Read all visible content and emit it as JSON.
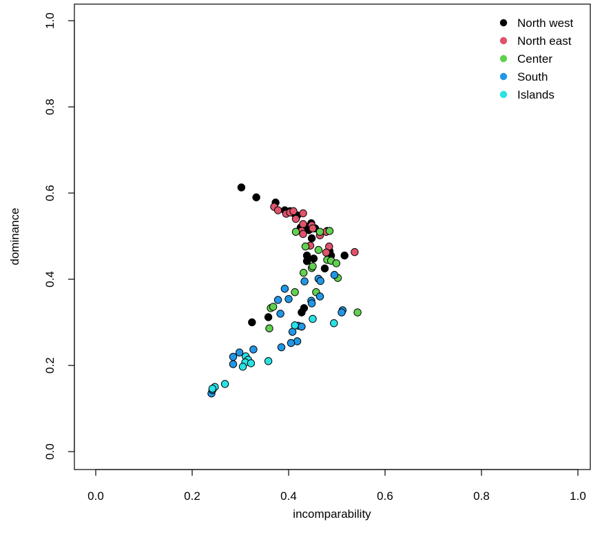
{
  "chart_data": {
    "type": "scatter",
    "title": "",
    "xlabel": "incomparability",
    "ylabel": "dominance",
    "xlim": [
      0,
      1
    ],
    "ylim": [
      0,
      1
    ],
    "xticks": [
      "0.0",
      "0.2",
      "0.4",
      "0.6",
      "0.8",
      "1.0"
    ],
    "yticks": [
      "0.0",
      "0.2",
      "0.4",
      "0.6",
      "0.8",
      "1.0"
    ],
    "grid": false,
    "legend": "top-right",
    "series": [
      {
        "name": "North west",
        "color": "#000000",
        "points": [
          [
            0.302,
            0.613
          ],
          [
            0.333,
            0.59
          ],
          [
            0.373,
            0.578
          ],
          [
            0.392,
            0.56
          ],
          [
            0.403,
            0.558
          ],
          [
            0.412,
            0.552
          ],
          [
            0.418,
            0.548
          ],
          [
            0.425,
            0.52
          ],
          [
            0.436,
            0.522
          ],
          [
            0.447,
            0.53
          ],
          [
            0.442,
            0.514
          ],
          [
            0.455,
            0.518
          ],
          [
            0.48,
            0.512
          ],
          [
            0.448,
            0.495
          ],
          [
            0.485,
            0.465
          ],
          [
            0.488,
            0.455
          ],
          [
            0.438,
            0.455
          ],
          [
            0.452,
            0.448
          ],
          [
            0.438,
            0.442
          ],
          [
            0.475,
            0.425
          ],
          [
            0.516,
            0.455
          ],
          [
            0.432,
            0.333
          ],
          [
            0.427,
            0.323
          ],
          [
            0.324,
            0.3
          ],
          [
            0.358,
            0.312
          ]
        ]
      },
      {
        "name": "North east",
        "color": "#DF536B",
        "points": [
          [
            0.37,
            0.568
          ],
          [
            0.378,
            0.56
          ],
          [
            0.395,
            0.552
          ],
          [
            0.403,
            0.555
          ],
          [
            0.41,
            0.558
          ],
          [
            0.415,
            0.54
          ],
          [
            0.43,
            0.553
          ],
          [
            0.43,
            0.528
          ],
          [
            0.448,
            0.525
          ],
          [
            0.45,
            0.518
          ],
          [
            0.427,
            0.512
          ],
          [
            0.43,
            0.505
          ],
          [
            0.465,
            0.502
          ],
          [
            0.478,
            0.51
          ],
          [
            0.484,
            0.476
          ],
          [
            0.478,
            0.462
          ],
          [
            0.445,
            0.478
          ],
          [
            0.537,
            0.463
          ]
        ]
      },
      {
        "name": "Center",
        "color": "#61D04F",
        "points": [
          [
            0.415,
            0.51
          ],
          [
            0.465,
            0.51
          ],
          [
            0.485,
            0.512
          ],
          [
            0.435,
            0.476
          ],
          [
            0.462,
            0.468
          ],
          [
            0.48,
            0.445
          ],
          [
            0.488,
            0.443
          ],
          [
            0.499,
            0.437
          ],
          [
            0.448,
            0.426
          ],
          [
            0.45,
            0.43
          ],
          [
            0.431,
            0.415
          ],
          [
            0.502,
            0.403
          ],
          [
            0.457,
            0.37
          ],
          [
            0.413,
            0.37
          ],
          [
            0.363,
            0.333
          ],
          [
            0.368,
            0.336
          ],
          [
            0.36,
            0.286
          ],
          [
            0.543,
            0.323
          ]
        ]
      },
      {
        "name": "South",
        "color": "#2297E6",
        "points": [
          [
            0.495,
            0.41
          ],
          [
            0.462,
            0.401
          ],
          [
            0.466,
            0.396
          ],
          [
            0.433,
            0.395
          ],
          [
            0.392,
            0.378
          ],
          [
            0.378,
            0.352
          ],
          [
            0.4,
            0.354
          ],
          [
            0.465,
            0.36
          ],
          [
            0.447,
            0.35
          ],
          [
            0.448,
            0.344
          ],
          [
            0.512,
            0.328
          ],
          [
            0.51,
            0.323
          ],
          [
            0.383,
            0.32
          ],
          [
            0.42,
            0.292
          ],
          [
            0.427,
            0.29
          ],
          [
            0.408,
            0.278
          ],
          [
            0.418,
            0.256
          ],
          [
            0.405,
            0.252
          ],
          [
            0.385,
            0.242
          ],
          [
            0.327,
            0.237
          ],
          [
            0.298,
            0.23
          ],
          [
            0.285,
            0.22
          ],
          [
            0.285,
            0.203
          ],
          [
            0.24,
            0.135
          ],
          [
            0.242,
            0.143
          ]
        ]
      },
      {
        "name": "Islands",
        "color": "#28E2E5",
        "points": [
          [
            0.45,
            0.308
          ],
          [
            0.494,
            0.298
          ],
          [
            0.413,
            0.293
          ],
          [
            0.311,
            0.221
          ],
          [
            0.316,
            0.213
          ],
          [
            0.31,
            0.207
          ],
          [
            0.322,
            0.205
          ],
          [
            0.305,
            0.197
          ],
          [
            0.358,
            0.21
          ],
          [
            0.268,
            0.157
          ],
          [
            0.247,
            0.15
          ],
          [
            0.242,
            0.146
          ]
        ]
      }
    ]
  }
}
